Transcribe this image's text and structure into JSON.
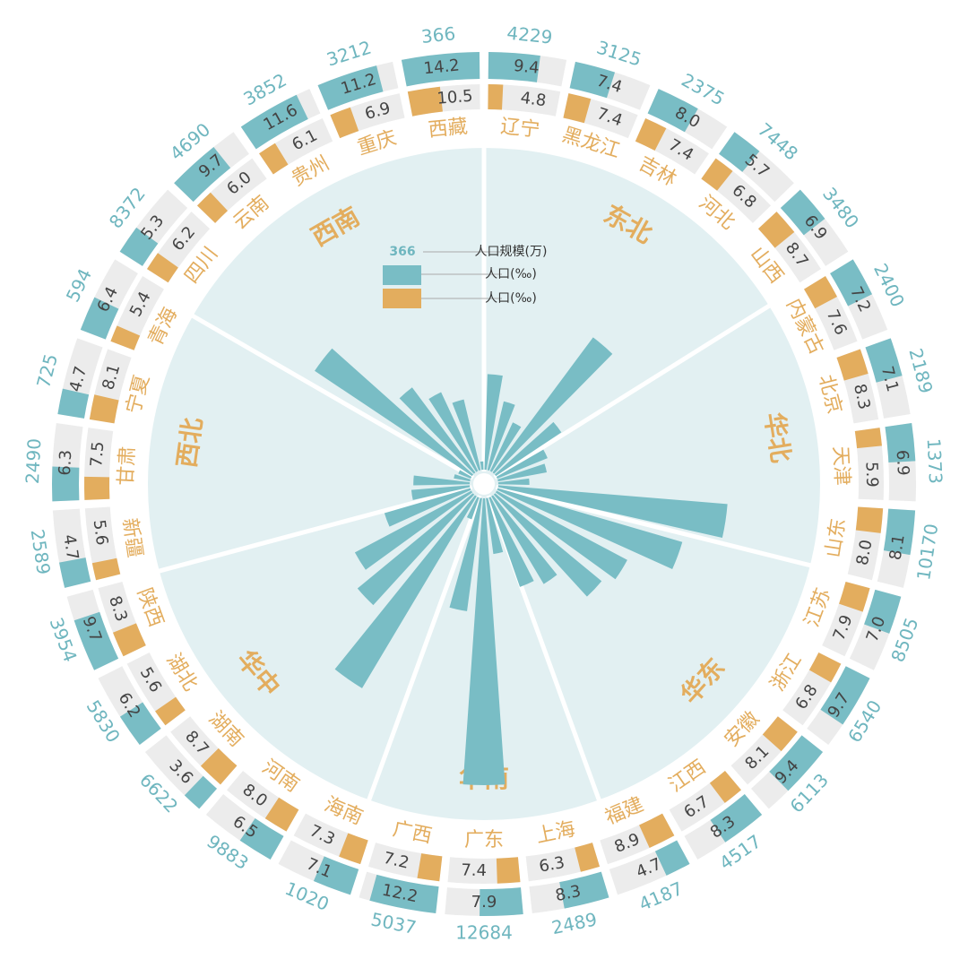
{
  "chart_data": {
    "type": "radial-bar",
    "categories": [
      "辽宁",
      "黑龙江",
      "吉林",
      "河北",
      "山西",
      "内蒙古",
      "北京",
      "天津",
      "山东",
      "江苏",
      "浙江",
      "安徽",
      "江西",
      "福建",
      "上海",
      "广东",
      "广西",
      "海南",
      "河南",
      "湖南",
      "湖北",
      "陕西",
      "新疆",
      "甘肃",
      "宁夏",
      "青海",
      "四川",
      "云南",
      "贵州",
      "重庆",
      "西藏"
    ],
    "regions": [
      "东北",
      "华北",
      "华东",
      "华南",
      "华中",
      "西北",
      "西南"
    ],
    "series": [
      {
        "name": "人口规模(万)",
        "color": "#79bdc5",
        "values": [
          4229,
          3125,
          2375,
          7448,
          3480,
          2400,
          2189,
          1373,
          10170,
          8505,
          6540,
          6113,
          4517,
          4187,
          2489,
          12684,
          5037,
          1020,
          9883,
          6622,
          5830,
          3954,
          2589,
          2490,
          725,
          594,
          8372,
          4690,
          3852,
          3212,
          366
        ]
      },
      {
        "name": "人口(‰)",
        "color": "#79bdc5",
        "values": [
          9.4,
          7.4,
          8.0,
          5.7,
          6.9,
          7.2,
          7.1,
          6.9,
          8.1,
          7.0,
          9.7,
          9.4,
          8.3,
          4.7,
          8.3,
          7.9,
          12.2,
          7.1,
          6.5,
          3.6,
          6.2,
          9.7,
          4.7,
          6.3,
          4.7,
          6.4,
          5.3,
          9.7,
          11.6,
          11.2,
          14.2
        ],
        "value_labels": [
          "9.4",
          "7.4",
          "8.0",
          "5.7",
          "6.9",
          "7.2",
          "7.1",
          "6.9",
          "8.1",
          "7.0",
          "9.7",
          "9.4",
          "8.3",
          "4.7",
          "8.3",
          "7.9",
          "12.2",
          "7.1",
          "6.5",
          "3.6",
          "6.2",
          "9.7",
          "4.7",
          "6.3",
          "4.7",
          "6.4",
          "5.3",
          "9.7",
          "11.6",
          "11.2",
          "14.2"
        ]
      },
      {
        "name": "人口(‰)",
        "color": "#e3ad5e",
        "values": [
          4.8,
          7.4,
          7.4,
          6.8,
          8.7,
          7.6,
          8.3,
          5.9,
          8.0,
          7.9,
          6.8,
          8.1,
          6.7,
          8.9,
          6.3,
          7.4,
          7.2,
          7.3,
          8.0,
          8.7,
          5.6,
          8.3,
          5.6,
          7.5,
          8.1,
          5.4,
          6.2,
          6.0,
          6.1,
          6.9,
          10.5
        ],
        "value_labels": [
          "4.8",
          "7.4",
          "7.4",
          "6.8",
          "8.7",
          "7.6",
          "8.3",
          "5.9",
          "8.0",
          "7.9",
          "6.8",
          "8.1",
          "6.7",
          "8.9",
          "6.3",
          "7.4",
          "7.2",
          "7.3",
          "8.0",
          "8.7",
          "5.6",
          "8.3",
          "5.6",
          "7.5",
          "8.1",
          "5.4",
          "6.2",
          "6.0",
          "6.1",
          "6.9",
          "10.5"
        ]
      }
    ]
  }
}
